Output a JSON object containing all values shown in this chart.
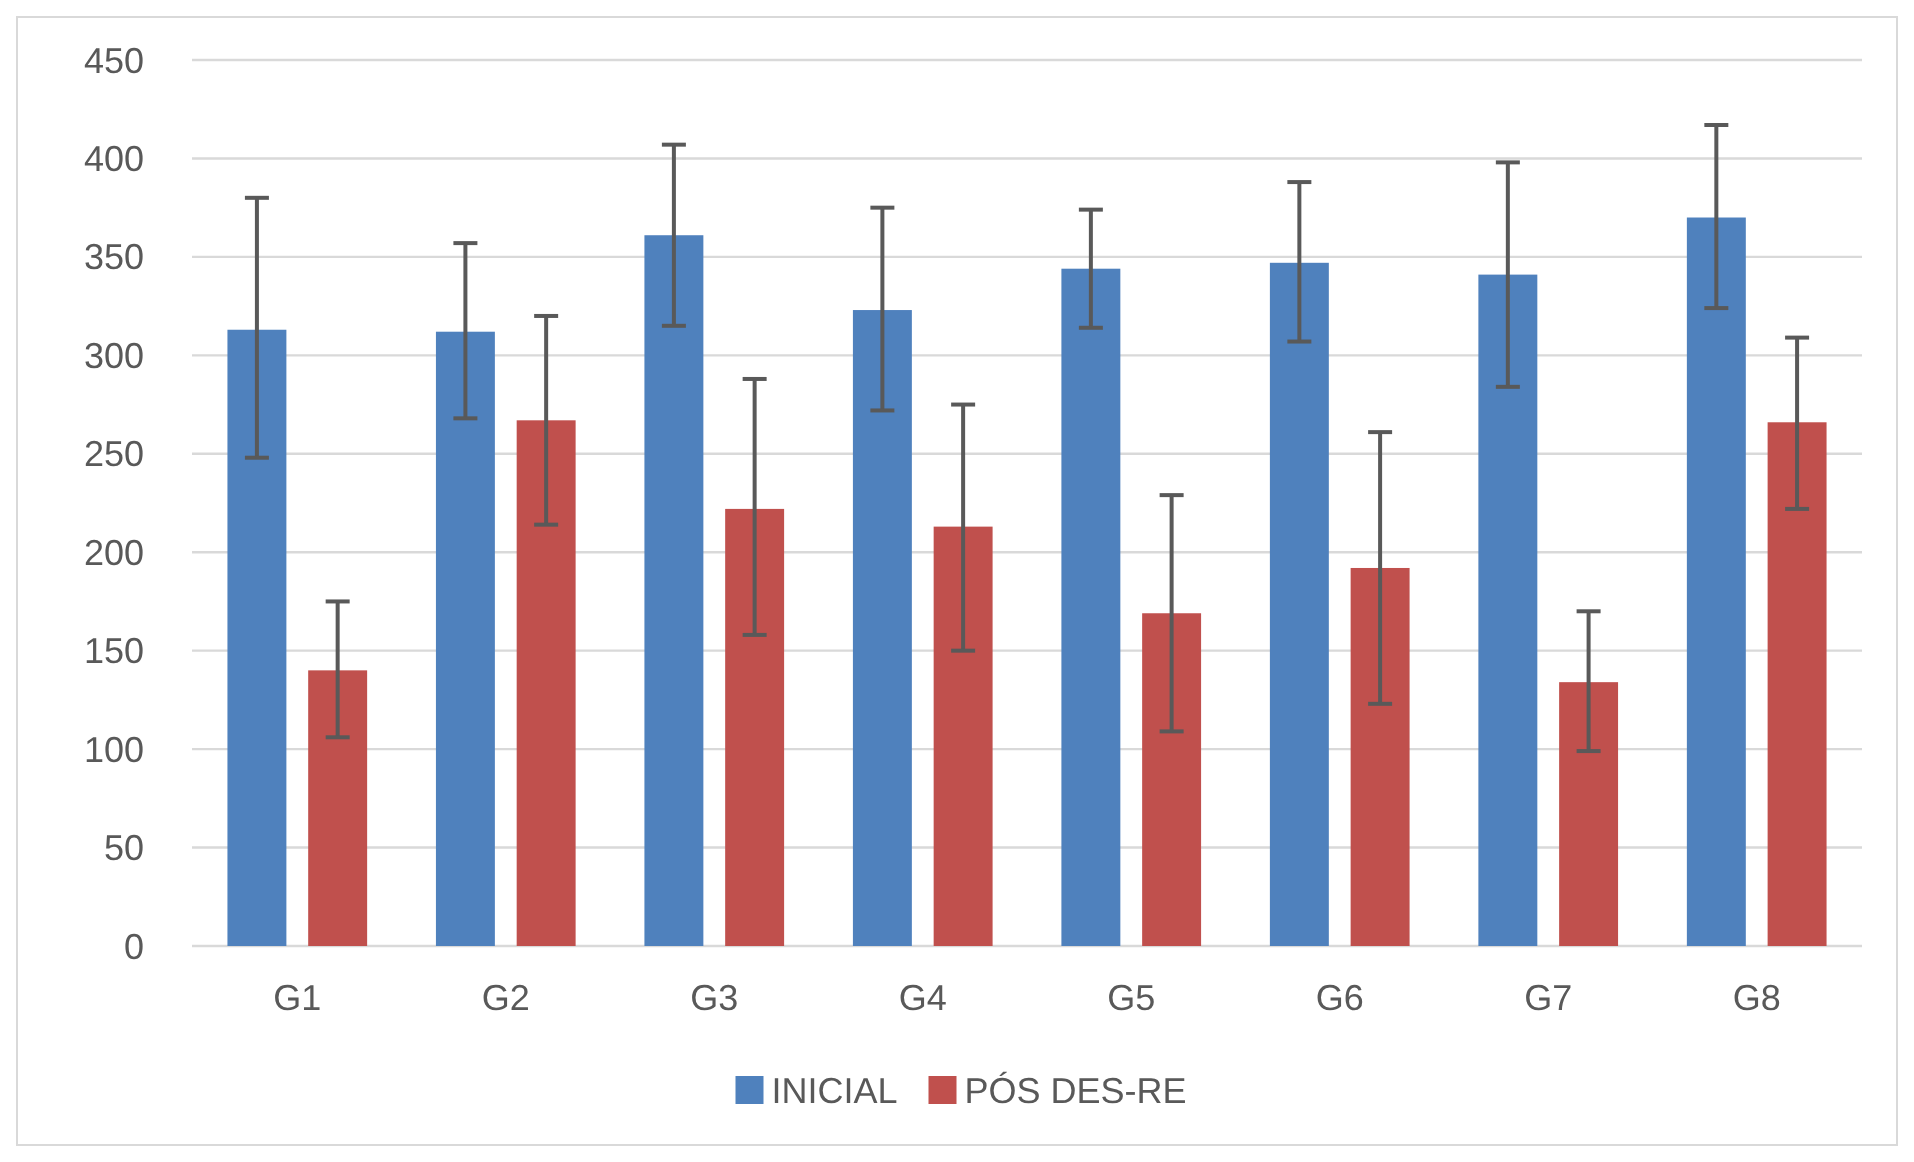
{
  "chart_data": {
    "type": "bar",
    "categories": [
      "G1",
      "G2",
      "G3",
      "G4",
      "G5",
      "G6",
      "G7",
      "G8"
    ],
    "series": [
      {
        "name": "INICIAL",
        "color": "#4f81bd",
        "values": [
          313,
          312,
          361,
          323,
          344,
          347,
          341,
          370
        ],
        "errors": [
          [
            248,
            380
          ],
          [
            268,
            357
          ],
          [
            315,
            407
          ],
          [
            272,
            375
          ],
          [
            314,
            374
          ],
          [
            307,
            388
          ],
          [
            284,
            398
          ],
          [
            324,
            417
          ]
        ]
      },
      {
        "name": "PÓS DES-RE",
        "color": "#c0504d",
        "values": [
          140,
          267,
          222,
          213,
          169,
          192,
          134,
          266
        ],
        "errors": [
          [
            106,
            175
          ],
          [
            214,
            320
          ],
          [
            158,
            288
          ],
          [
            150,
            275
          ],
          [
            109,
            229
          ],
          [
            123,
            261
          ],
          [
            99,
            170
          ],
          [
            222,
            309
          ]
        ]
      }
    ],
    "ylim": [
      0,
      450
    ],
    "yticks": [
      0,
      50,
      100,
      150,
      200,
      250,
      300,
      350,
      400,
      450
    ],
    "grid": "y",
    "legend": "bottom"
  }
}
